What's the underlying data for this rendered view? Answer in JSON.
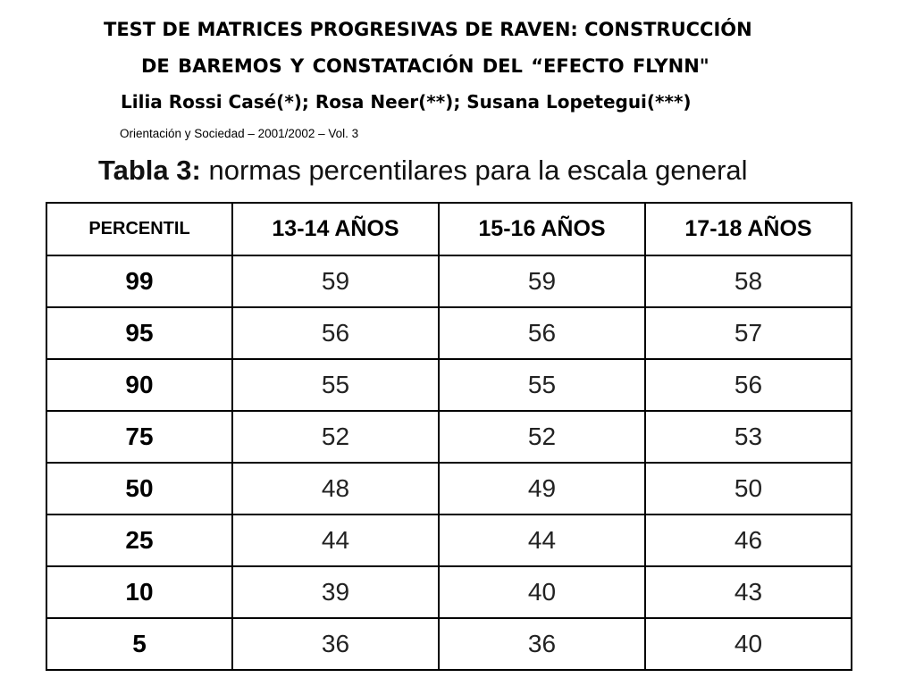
{
  "header": {
    "title_line1": "TEST DE MATRICES PROGRESIVAS DE RAVEN: CONSTRUCCIÓN",
    "title_line2": "DE BAREMOS   Y CONSTATACIÓN   DEL “EFECTO FLYNN\"",
    "authors": "Lilia Rossi Casé(*); Rosa Neer(**); Susana Lopetegui(***)",
    "journal": "Orientación y Sociedad – 2001/2002 – Vol. 3"
  },
  "caption": {
    "label": "Tabla 3:",
    "text": " normas percentilares para la escala general"
  },
  "table": {
    "headers": [
      "PERCENTIL",
      "13-14 AÑOS",
      "15-16 AÑOS",
      "17-18 AÑOS"
    ],
    "rows": [
      [
        "99",
        "59",
        "59",
        "58"
      ],
      [
        "95",
        "56",
        "56",
        "57"
      ],
      [
        "90",
        "55",
        "55",
        "56"
      ],
      [
        "75",
        "52",
        "52",
        "53"
      ],
      [
        "50",
        "48",
        "49",
        "50"
      ],
      [
        "25",
        "44",
        "44",
        "46"
      ],
      [
        "10",
        "39",
        "40",
        "43"
      ],
      [
        "5",
        "36",
        "36",
        "40"
      ]
    ]
  }
}
